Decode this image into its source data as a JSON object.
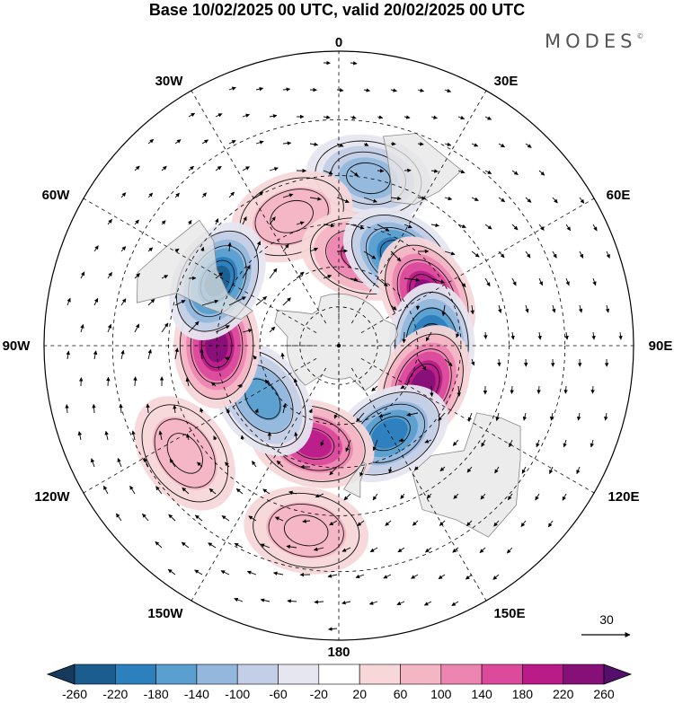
{
  "title": "Base 10/02/2025 00 UTC, valid 20/02/2025 00 UTC",
  "brand": "MODES",
  "brand_mark": "©",
  "map": {
    "projection": "south-polar-stereographic",
    "meridian_labels": [
      {
        "id": "lon-0",
        "text": "0"
      },
      {
        "id": "lon-30e",
        "text": "30E"
      },
      {
        "id": "lon-60e",
        "text": "60E"
      },
      {
        "id": "lon-90e",
        "text": "90E"
      },
      {
        "id": "lon-120e",
        "text": "120E"
      },
      {
        "id": "lon-150e",
        "text": "150E"
      },
      {
        "id": "lon-180",
        "text": "180"
      },
      {
        "id": "lon-150w",
        "text": "150W"
      },
      {
        "id": "lon-120w",
        "text": "120W"
      },
      {
        "id": "lon-90w",
        "text": "90W"
      },
      {
        "id": "lon-60w",
        "text": "60W"
      },
      {
        "id": "lon-30w",
        "text": "30W"
      }
    ],
    "reference_vector_label": "30",
    "anomalies": [
      {
        "sign": "negative",
        "value": -120,
        "lon": 10,
        "lat": -30
      },
      {
        "sign": "positive",
        "value": 80,
        "lon": -20,
        "lat": -40
      },
      {
        "sign": "positive",
        "value": 140,
        "lon": 15,
        "lat": -55
      },
      {
        "sign": "negative",
        "value": -220,
        "lon": 35,
        "lat": -50
      },
      {
        "sign": "positive",
        "value": 240,
        "lon": 60,
        "lat": -52
      },
      {
        "sign": "negative",
        "value": -260,
        "lon": 90,
        "lat": -55
      },
      {
        "sign": "positive",
        "value": 240,
        "lon": 115,
        "lat": -55
      },
      {
        "sign": "negative",
        "value": -200,
        "lon": 150,
        "lat": -52
      },
      {
        "sign": "positive",
        "value": 200,
        "lon": -165,
        "lat": -52
      },
      {
        "sign": "negative",
        "value": -160,
        "lon": -125,
        "lat": -55
      },
      {
        "sign": "positive",
        "value": 230,
        "lon": -90,
        "lat": -45
      },
      {
        "sign": "negative",
        "value": -240,
        "lon": -62,
        "lat": -40
      },
      {
        "sign": "positive",
        "value": 60,
        "lon": -125,
        "lat": -25
      },
      {
        "sign": "positive",
        "value": 60,
        "lon": -170,
        "lat": -25
      }
    ]
  },
  "colorbar": {
    "tick_labels": [
      "-260",
      "-220",
      "-180",
      "-140",
      "-100",
      "-60",
      "-20",
      "20",
      "60",
      "100",
      "140",
      "180",
      "220",
      "260"
    ],
    "colors": [
      "#153a5c",
      "#1b5d8f",
      "#2b80bd",
      "#5a9fd0",
      "#93b7dd",
      "#c3cfe6",
      "#e6e6f0",
      "#ffffff",
      "#f7d7d9",
      "#f4b5c4",
      "#ec86b1",
      "#dc4a9c",
      "#b91b89",
      "#861077",
      "#540f6c"
    ]
  }
}
